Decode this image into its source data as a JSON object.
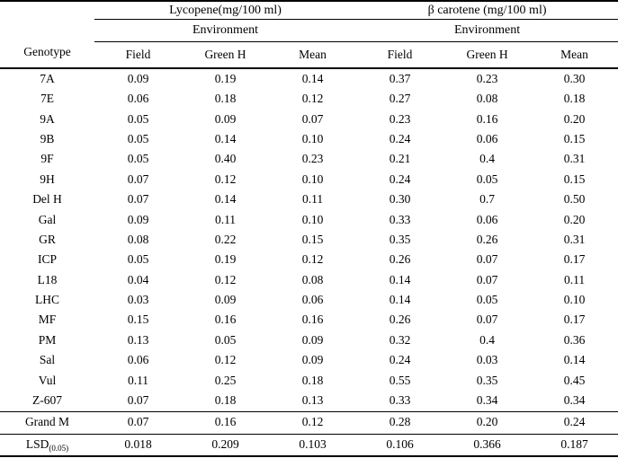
{
  "table": {
    "genotype_header": "Genotype",
    "groups": [
      {
        "title": "Lycopene(mg/100 ml)",
        "env": "Environment"
      },
      {
        "title": "β carotene (mg/100 ml)",
        "env": "Environment"
      }
    ],
    "sub_columns": [
      "Field",
      "Green H",
      "Mean",
      "Field",
      "Green H",
      "Mean"
    ],
    "rows": [
      {
        "genotype": "7A",
        "values": [
          "0.09",
          "0.19",
          "0.14",
          "0.37",
          "0.23",
          "0.30"
        ]
      },
      {
        "genotype": "7E",
        "values": [
          "0.06",
          "0.18",
          "0.12",
          "0.27",
          "0.08",
          "0.18"
        ]
      },
      {
        "genotype": "9A",
        "values": [
          "0.05",
          "0.09",
          "0.07",
          "0.23",
          "0.16",
          "0.20"
        ]
      },
      {
        "genotype": "9B",
        "values": [
          "0.05",
          "0.14",
          "0.10",
          "0.24",
          "0.06",
          "0.15"
        ]
      },
      {
        "genotype": "9F",
        "values": [
          "0.05",
          "0.40",
          "0.23",
          "0.21",
          "0.4",
          "0.31"
        ]
      },
      {
        "genotype": "9H",
        "values": [
          "0.07",
          "0.12",
          "0.10",
          "0.24",
          "0.05",
          "0.15"
        ]
      },
      {
        "genotype": "Del H",
        "values": [
          "0.07",
          "0.14",
          "0.11",
          "0.30",
          "0.7",
          "0.50"
        ]
      },
      {
        "genotype": "Gal",
        "values": [
          "0.09",
          "0.11",
          "0.10",
          "0.33",
          "0.06",
          "0.20"
        ]
      },
      {
        "genotype": "GR",
        "values": [
          "0.08",
          "0.22",
          "0.15",
          "0.35",
          "0.26",
          "0.31"
        ]
      },
      {
        "genotype": "ICP",
        "values": [
          "0.05",
          "0.19",
          "0.12",
          "0.26",
          "0.07",
          "0.17"
        ]
      },
      {
        "genotype": "L18",
        "values": [
          "0.04",
          "0.12",
          "0.08",
          "0.14",
          "0.07",
          "0.11"
        ]
      },
      {
        "genotype": "LHC",
        "values": [
          "0.03",
          "0.09",
          "0.06",
          "0.14",
          "0.05",
          "0.10"
        ]
      },
      {
        "genotype": "MF",
        "values": [
          "0.15",
          "0.16",
          "0.16",
          "0.26",
          "0.07",
          "0.17"
        ]
      },
      {
        "genotype": "PM",
        "values": [
          "0.13",
          "0.05",
          "0.09",
          "0.32",
          "0.4",
          "0.36"
        ]
      },
      {
        "genotype": "Sal",
        "values": [
          "0.06",
          "0.12",
          "0.09",
          "0.24",
          "0.03",
          "0.14"
        ]
      },
      {
        "genotype": "Vul",
        "values": [
          "0.11",
          "0.25",
          "0.18",
          "0.55",
          "0.35",
          "0.45"
        ]
      },
      {
        "genotype": "Z-607",
        "values": [
          "0.07",
          "0.18",
          "0.13",
          "0.33",
          "0.34",
          "0.34"
        ]
      }
    ],
    "grand_row": {
      "label": "Grand M",
      "values": [
        "0.07",
        "0.16",
        "0.12",
        "0.28",
        "0.20",
        "0.24"
      ]
    },
    "lsd_row": {
      "label": "LSD",
      "label_sub": "(0.05)",
      "values": [
        "0.018",
        "0.209",
        "0.103",
        "0.106",
        "0.366",
        "0.187"
      ]
    }
  },
  "colors": {
    "text": "#000000",
    "line": "#000000",
    "background": "#ffffff"
  }
}
